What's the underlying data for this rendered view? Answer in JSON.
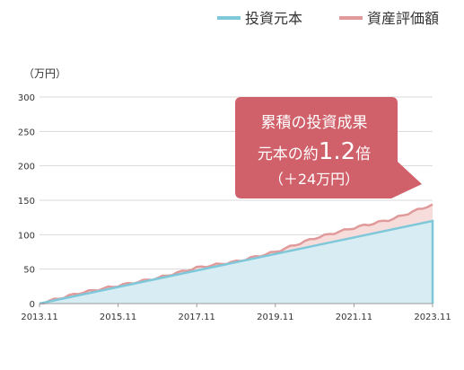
{
  "chart_data": {
    "type": "area",
    "ylabel": "（万円）",
    "ylim": [
      0,
      300
    ],
    "yticks": [
      0,
      50,
      100,
      150,
      200,
      250,
      300
    ],
    "x_tick_labels": [
      "2013.11",
      "2015.11",
      "2017.11",
      "2019.11",
      "2021.11",
      "2023.11"
    ],
    "x_range_years": [
      2013.833,
      2023.833
    ],
    "legend": {
      "placement": "top-right",
      "entries": [
        "投資元本",
        "資産評価額"
      ]
    },
    "colors": {
      "principal_line": "#7ec8da",
      "principal_fill": "#d8edf3",
      "value_line": "#e09a9a",
      "value_fill": "#f7dcdc",
      "callout": "#d0606a",
      "axis": "#999999",
      "grid": "#d9d9d9"
    },
    "series": [
      {
        "name": "投資元本",
        "x": [
          "2013.11",
          "2023.11"
        ],
        "values": [
          0,
          120
        ]
      },
      {
        "name": "資産評価額",
        "x": [
          "2013.11",
          "2014.11",
          "2015.11",
          "2016.11",
          "2017.11",
          "2018.11",
          "2019.11",
          "2020.11",
          "2021.11",
          "2022.11",
          "2023.11"
        ],
        "values": [
          0,
          15,
          26,
          37,
          52,
          61,
          75,
          95,
          110,
          123,
          144
        ]
      }
    ],
    "annotation": {
      "line1": "累積の投資成果",
      "line2_prefix": "元本の約",
      "line2_value": "1.2",
      "line2_suffix": "倍",
      "line3": "（＋24万円）"
    }
  }
}
